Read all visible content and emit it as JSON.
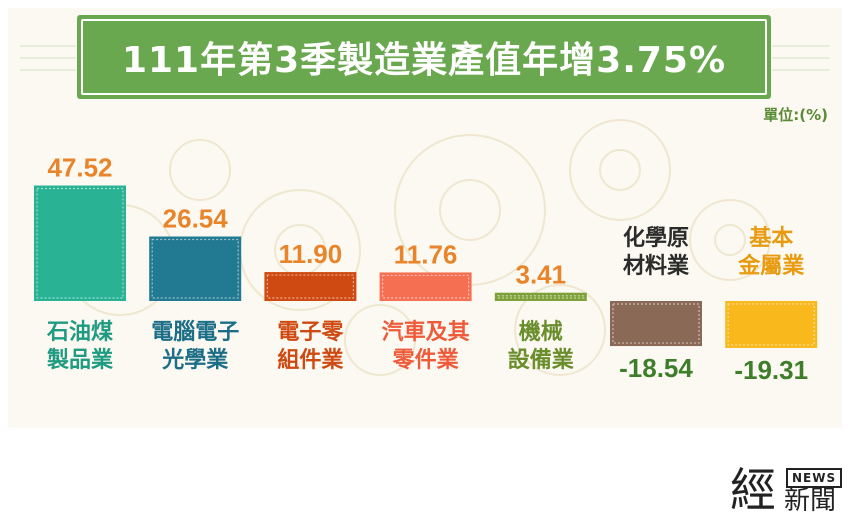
{
  "title": "111年第3季製造業產值年增3.75%",
  "unit_label": "單位:(%)",
  "logo": {
    "big": "經",
    "news": "NEWS",
    "small": "新聞"
  },
  "colors": {
    "banner": "#6aa84f",
    "positive_label": "#e8842a",
    "negative_label": "#3e7e2a",
    "up_value": "#e8842a"
  },
  "chart_data": {
    "type": "bar",
    "title": "111年第3季製造業產值年增3.75%",
    "unit": "單位:(%)",
    "ylim": [
      -19.31,
      47.52
    ],
    "grid": false,
    "categories": [
      [
        "石油煤",
        "製品業"
      ],
      [
        "電腦電子",
        "光學業"
      ],
      [
        "電子零",
        "組件業"
      ],
      [
        "汽車及其",
        "零件業"
      ],
      [
        "機械",
        "設備業"
      ],
      [
        "化學原",
        "材料業"
      ],
      [
        "基本",
        "金屬業"
      ]
    ],
    "values": [
      47.52,
      26.54,
      11.9,
      11.76,
      3.41,
      -18.54,
      -19.31
    ],
    "value_labels": [
      "47.52",
      "26.54",
      "11.90",
      "11.76",
      "3.41",
      "-18.54",
      "-19.31"
    ],
    "bar_colors": [
      "#2ab295",
      "#217a91",
      "#cf4a12",
      "#f57052",
      "#7ea239",
      "#8a6a57",
      "#f9b81c"
    ],
    "category_colors": [
      "#1f9b82",
      "#1c6d86",
      "#cf4a12",
      "#ef5b3a",
      "#6b8e2c",
      "#2b2b2b",
      "#e89b10"
    ]
  }
}
